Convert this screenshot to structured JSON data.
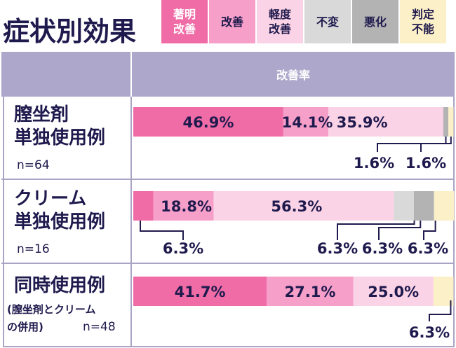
{
  "page_title": "症状別効果",
  "legend": [
    {
      "label": "著明\n改善",
      "color": "#f06ca6",
      "text_color": "#ffffff"
    },
    {
      "label": "改善",
      "color": "#f59fc9",
      "text_color": "#1f1a4d"
    },
    {
      "label": "軽度\n改善",
      "color": "#fbd3e6",
      "text_color": "#1f1a4d"
    },
    {
      "label": "不変",
      "color": "#d9d9d9",
      "text_color": "#1f1a4d"
    },
    {
      "label": "悪化",
      "color": "#b3b3b3",
      "text_color": "#1f1a4d"
    },
    {
      "label": "判定\n不能",
      "color": "#fcf0c8",
      "text_color": "#1f1a4d"
    }
  ],
  "table_header": "改善率",
  "rows": [
    {
      "name_line1": "膣坐剤",
      "name_line2": "単独使用例",
      "n": "n=64"
    },
    {
      "name_line1": "クリーム",
      "name_line2": "単独使用例",
      "n": "n=16"
    },
    {
      "name_line1": "同時使用例",
      "name_sub1": "(膣坐剤とクリーム",
      "name_sub2": "の併用)",
      "n": "n=48"
    }
  ],
  "chart_data": {
    "type": "bar",
    "orientation": "horizontal",
    "stacked": true,
    "title": "症状別効果",
    "categories": [
      "膣坐剤単独使用例 n=64",
      "クリーム単独使用例 n=16",
      "同時使用例(膣坐剤とクリームの併用) n=48"
    ],
    "series": [
      {
        "name": "著明改善",
        "values": [
          46.9,
          6.3,
          41.7
        ]
      },
      {
        "name": "改善",
        "values": [
          14.1,
          18.8,
          27.1
        ]
      },
      {
        "name": "軽度改善",
        "values": [
          35.9,
          56.3,
          25.0
        ]
      },
      {
        "name": "不変",
        "values": [
          0,
          6.3,
          0
        ]
      },
      {
        "name": "悪化",
        "values": [
          1.6,
          6.3,
          0
        ]
      },
      {
        "name": "判定不能",
        "values": [
          1.6,
          6.3,
          6.3
        ]
      }
    ],
    "labels": [
      [
        "46.9%",
        "14.1%",
        "35.9%",
        "",
        "1.6%",
        "1.6%"
      ],
      [
        "6.3%",
        "18.8%",
        "56.3%",
        "6.3%",
        "6.3%",
        "6.3%"
      ],
      [
        "41.7%",
        "27.1%",
        "25.0%",
        "",
        "",
        "6.3%"
      ]
    ],
    "ylabel": "改善率",
    "xlim": [
      0,
      100
    ]
  }
}
